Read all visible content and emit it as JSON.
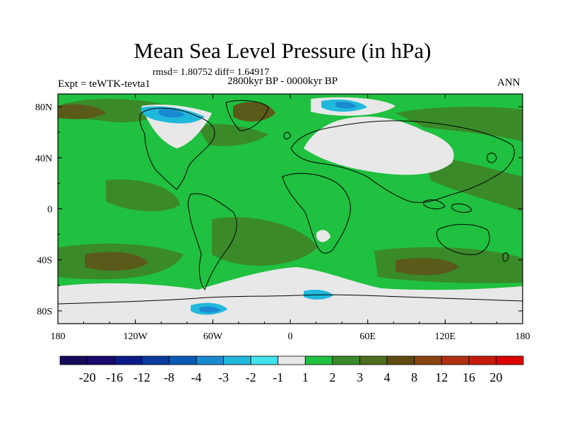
{
  "title": "Mean Sea Level Pressure (in hPa)",
  "stats": "rmsd= 1.80752 diff= 1.64917",
  "period": "2800kyr BP - 0000kyr BP",
  "experiment": "Expt = teWTK-tevta1",
  "season": "ANN",
  "x_axis": {
    "ticks": [
      -180,
      -120,
      -60,
      0,
      60,
      120,
      180
    ],
    "labels": [
      "180",
      "120W",
      "60W",
      "0",
      "60E",
      "120E",
      "180"
    ]
  },
  "y_axis": {
    "ticks": [
      80,
      40,
      0,
      -40,
      -80
    ],
    "labels": [
      "80N",
      "40N",
      "0",
      "40S",
      "80S"
    ],
    "range": [
      -90,
      90
    ]
  },
  "colorbar": {
    "colors": [
      "#1a0a6e",
      "#0a1a88",
      "#0a3a9e",
      "#0a5ab4",
      "#1a8ad0",
      "#21b8dc",
      "#40e2ec",
      "#e8e8e8",
      "#20c040",
      "#3a8a2a",
      "#4e6e1e",
      "#604a14",
      "#8a4414",
      "#b03010",
      "#c81a0a",
      "#dc0000"
    ],
    "labels": [
      "-20",
      "-16",
      "-12",
      "-8",
      "-4",
      "-3",
      "-2",
      "-1",
      "1",
      "2",
      "3",
      "4",
      "8",
      "12",
      "16",
      "20"
    ]
  },
  "field_colors": {
    "base": "#20c040",
    "mid": "#3a8a2a",
    "high": "#5a5a1a",
    "neutral": "#e8e8e8",
    "neg": "#21b8dc",
    "neg_strong": "#1a8ad0"
  }
}
